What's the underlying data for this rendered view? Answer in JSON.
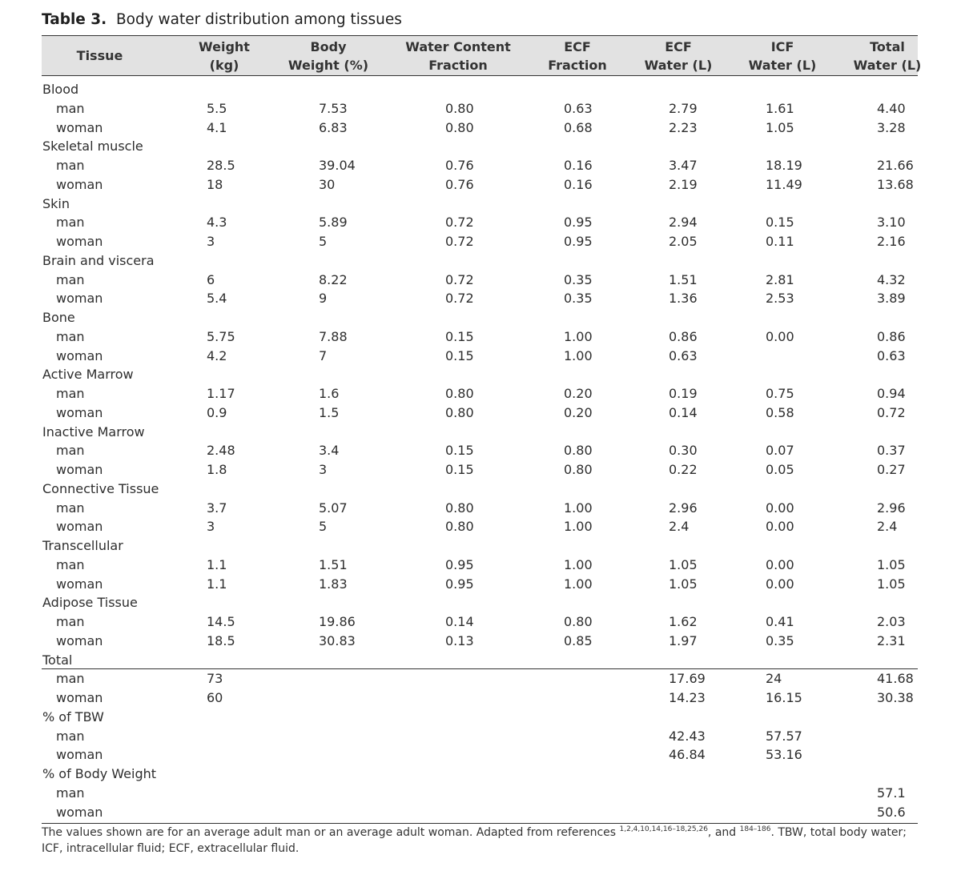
{
  "title": {
    "label": "Table 3.",
    "text": "Body water distribution among tissues"
  },
  "headers": {
    "tissue": [
      "Tissue"
    ],
    "weight": [
      "Weight",
      "(kg)"
    ],
    "body_weight": [
      "Body",
      "Weight (%)"
    ],
    "water_content": [
      "Water Content",
      "Fraction"
    ],
    "ecf_fraction": [
      "ECF",
      "Fraction"
    ],
    "ecf_water": [
      "ECF",
      "Water (L)"
    ],
    "icf_water": [
      "ICF",
      "Water (L)"
    ],
    "total_water": [
      "Total",
      "Water (L)"
    ]
  },
  "rows": [
    {
      "kind": "group",
      "label": "Blood"
    },
    {
      "kind": "sub",
      "label": "man",
      "values": [
        "5.5",
        "7.53",
        "0.80",
        "0.63",
        "2.79",
        "1.61",
        "4.40"
      ]
    },
    {
      "kind": "sub",
      "label": "woman",
      "values": [
        "4.1",
        "6.83",
        "0.80",
        "0.68",
        "2.23",
        "1.05",
        "3.28"
      ]
    },
    {
      "kind": "group",
      "label": "Skeletal muscle"
    },
    {
      "kind": "sub",
      "label": "man",
      "values": [
        "28.5",
        "39.04",
        "0.76",
        "0.16",
        "3.47",
        "18.19",
        "21.66"
      ]
    },
    {
      "kind": "sub",
      "label": "woman",
      "values": [
        "18",
        "30",
        "0.76",
        "0.16",
        "2.19",
        "11.49",
        "13.68"
      ]
    },
    {
      "kind": "group",
      "label": "Skin"
    },
    {
      "kind": "sub",
      "label": "man",
      "values": [
        "4.3",
        "5.89",
        "0.72",
        "0.95",
        "2.94",
        "0.15",
        "3.10"
      ]
    },
    {
      "kind": "sub",
      "label": "woman",
      "values": [
        "3",
        "5",
        "0.72",
        "0.95",
        "2.05",
        "0.11",
        "2.16"
      ]
    },
    {
      "kind": "group",
      "label": "Brain and viscera"
    },
    {
      "kind": "sub",
      "label": "man",
      "values": [
        "6",
        "8.22",
        "0.72",
        "0.35",
        "1.51",
        "2.81",
        "4.32"
      ]
    },
    {
      "kind": "sub",
      "label": "woman",
      "values": [
        "5.4",
        "9",
        "0.72",
        "0.35",
        "1.36",
        "2.53",
        "3.89"
      ]
    },
    {
      "kind": "group",
      "label": "Bone"
    },
    {
      "kind": "sub",
      "label": "man",
      "values": [
        "5.75",
        "7.88",
        "0.15",
        "1.00",
        "0.86",
        "0.00",
        "0.86"
      ]
    },
    {
      "kind": "sub",
      "label": "woman",
      "values": [
        "4.2",
        "7",
        "0.15",
        "1.00",
        "0.63",
        "",
        "0.63"
      ]
    },
    {
      "kind": "group",
      "label": "Active Marrow"
    },
    {
      "kind": "sub",
      "label": "man",
      "values": [
        "1.17",
        "1.6",
        "0.80",
        "0.20",
        "0.19",
        "0.75",
        "0.94"
      ]
    },
    {
      "kind": "sub",
      "label": "woman",
      "values": [
        "0.9",
        "1.5",
        "0.80",
        "0.20",
        "0.14",
        "0.58",
        "0.72"
      ]
    },
    {
      "kind": "group",
      "label": "Inactive Marrow"
    },
    {
      "kind": "sub",
      "label": "man",
      "values": [
        "2.48",
        "3.4",
        "0.15",
        "0.80",
        "0.30",
        "0.07",
        "0.37"
      ]
    },
    {
      "kind": "sub",
      "label": "woman",
      "values": [
        "1.8",
        "3",
        "0.15",
        "0.80",
        "0.22",
        "0.05",
        "0.27"
      ]
    },
    {
      "kind": "group",
      "label": "Connective Tissue"
    },
    {
      "kind": "sub",
      "label": "man",
      "values": [
        "3.7",
        "5.07",
        "0.80",
        "1.00",
        "2.96",
        "0.00",
        "2.96"
      ]
    },
    {
      "kind": "sub",
      "label": "woman",
      "values": [
        "3",
        "5",
        "0.80",
        "1.00",
        "2.4",
        "0.00",
        "2.4"
      ]
    },
    {
      "kind": "group",
      "label": "Transcellular"
    },
    {
      "kind": "sub",
      "label": "man",
      "values": [
        "1.1",
        "1.51",
        "0.95",
        "1.00",
        "1.05",
        "0.00",
        "1.05"
      ]
    },
    {
      "kind": "sub",
      "label": "woman",
      "values": [
        "1.1",
        "1.83",
        "0.95",
        "1.00",
        "1.05",
        "0.00",
        "1.05"
      ]
    },
    {
      "kind": "group",
      "label": "Adipose Tissue"
    },
    {
      "kind": "sub",
      "label": "man",
      "values": [
        "14.5",
        "19.86",
        "0.14",
        "0.80",
        "1.62",
        "0.41",
        "2.03"
      ]
    },
    {
      "kind": "sub",
      "label": "woman",
      "values": [
        "18.5",
        "30.83",
        "0.13",
        "0.85",
        "1.97",
        "0.35",
        "2.31"
      ]
    },
    {
      "kind": "group",
      "label": "Total"
    },
    {
      "kind": "sub",
      "label": "man",
      "values": [
        "73",
        "",
        "",
        "",
        "17.69",
        "24",
        "41.68"
      ]
    },
    {
      "kind": "sub",
      "label": "woman",
      "values": [
        "60",
        "",
        "",
        "",
        "14.23",
        "16.15",
        "30.38"
      ]
    },
    {
      "kind": "group",
      "label": "% of TBW"
    },
    {
      "kind": "sub",
      "label": "man",
      "values": [
        "",
        "",
        "",
        "",
        "42.43",
        "57.57",
        ""
      ]
    },
    {
      "kind": "sub",
      "label": "woman",
      "values": [
        "",
        "",
        "",
        "",
        "46.84",
        "53.16",
        ""
      ]
    },
    {
      "kind": "group",
      "label": "% of Body Weight"
    },
    {
      "kind": "sub",
      "label": "man",
      "values": [
        "",
        "",
        "",
        "",
        "",
        "",
        "57.1"
      ]
    },
    {
      "kind": "sub",
      "label": "woman",
      "values": [
        "",
        "",
        "",
        "",
        "",
        "",
        "50.6"
      ]
    }
  ],
  "footnote": {
    "text_before": "The values shown are for an average adult man or an average adult woman. Adapted from references ",
    "refs1": "1,2,4,10,14,16–18,25,26",
    "text_mid": ", and ",
    "refs2": "184–186",
    "text_after": ". TBW, total body water; ICF, intracellular fluid; ECF, extracellular fluid."
  }
}
